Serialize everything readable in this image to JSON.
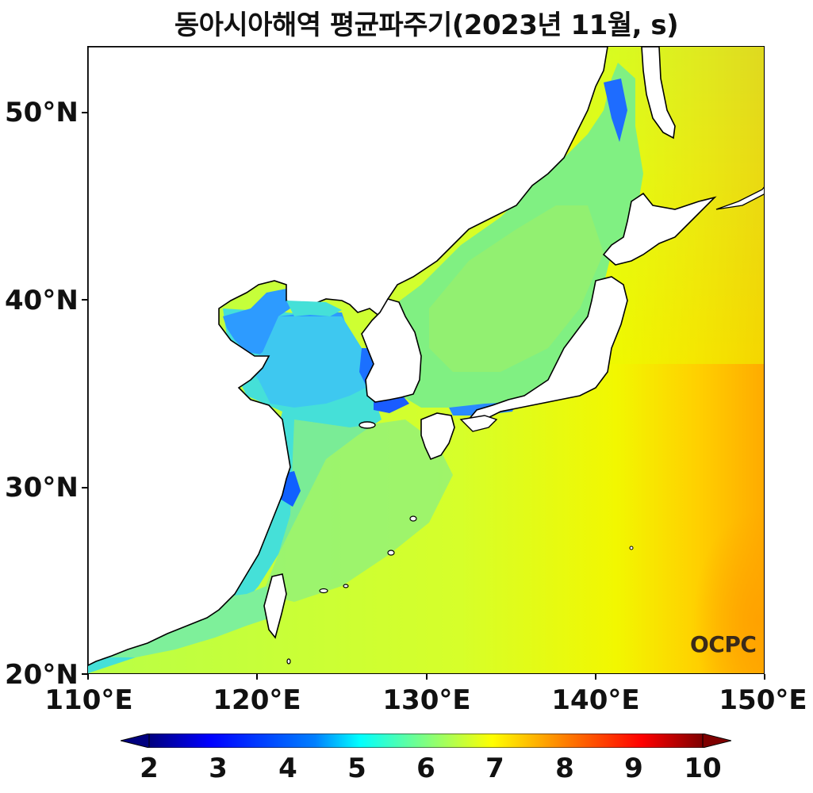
{
  "title": "동아시아해역 평균파주기(2023년 11월, s)",
  "logo_text": "OCPC",
  "y_ticks": [
    {
      "label": "50°N",
      "value": 50
    },
    {
      "label": "40°N",
      "value": 40
    },
    {
      "label": "30°N",
      "value": 30
    },
    {
      "label": "20°N",
      "value": 20
    }
  ],
  "x_ticks": [
    {
      "label": "110°E",
      "value": 110
    },
    {
      "label": "120°E",
      "value": 120
    },
    {
      "label": "130°E",
      "value": 130
    },
    {
      "label": "140°E",
      "value": 140
    },
    {
      "label": "150°E",
      "value": 150
    }
  ],
  "colorbar": {
    "labels": [
      "2",
      "3",
      "4",
      "5",
      "6",
      "7",
      "8",
      "9",
      "10"
    ],
    "min": 2,
    "max": 10,
    "colormap": "jet",
    "extend": "both",
    "colors": [
      "#00007f",
      "#0000ff",
      "#0080ff",
      "#00ffff",
      "#80ff80",
      "#ffff00",
      "#ff8000",
      "#ff0000",
      "#7f0000"
    ]
  },
  "map": {
    "lon_range": [
      110,
      150
    ],
    "lat_range": [
      20,
      53.5
    ],
    "colors": {
      "land": "#ffffff",
      "coast": "#000000",
      "nearshore": "#1e7dff",
      "shelf": "#4fe6e0",
      "marginal": "#7ff28a",
      "open_mid": "#c6ff3a",
      "open_east": "#f3f700",
      "far_east": "#ffb000"
    }
  }
}
